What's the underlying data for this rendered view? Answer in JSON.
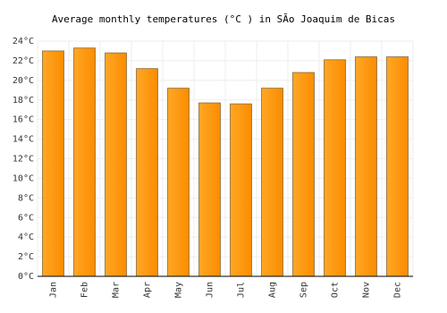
{
  "chart_data": {
    "type": "bar",
    "title": "Average monthly temperatures (°C ) in SÃo Joaquim de Bicas",
    "categories": [
      "Jan",
      "Feb",
      "Mar",
      "Apr",
      "May",
      "Jun",
      "Jul",
      "Aug",
      "Sep",
      "Oct",
      "Nov",
      "Dec"
    ],
    "values": [
      23.0,
      23.3,
      22.8,
      21.2,
      19.2,
      17.7,
      17.6,
      19.2,
      20.8,
      22.1,
      22.4,
      22.4
    ],
    "color": "#ffa726",
    "ylim": [
      0,
      24
    ],
    "yticks": [
      {
        "value": 0,
        "label": "0°C"
      },
      {
        "value": 2,
        "label": "2°C"
      },
      {
        "value": 4,
        "label": "4°C"
      },
      {
        "value": 6,
        "label": "6°C"
      },
      {
        "value": 8,
        "label": "8°C"
      },
      {
        "value": 10,
        "label": "10°C"
      },
      {
        "value": 12,
        "label": "12°C"
      },
      {
        "value": 14,
        "label": "14°C"
      },
      {
        "value": 16,
        "label": "16°C"
      },
      {
        "value": 18,
        "label": "18°C"
      },
      {
        "value": 20,
        "label": "20°C"
      },
      {
        "value": 22,
        "label": "22°C"
      },
      {
        "value": 24,
        "label": "24°C"
      }
    ],
    "grid": true
  }
}
